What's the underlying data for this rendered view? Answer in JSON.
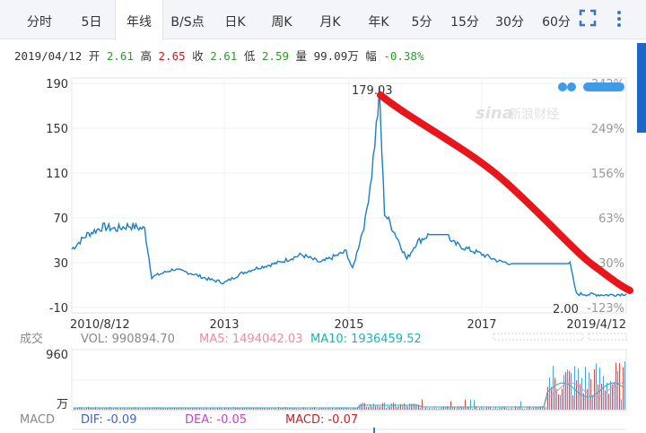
{
  "tabs": [
    "分时",
    "5日",
    "年线",
    "B/S点",
    "日K",
    "周K",
    "月K",
    "年K",
    "5分",
    "15分",
    "30分",
    "60分"
  ],
  "active_tab": "年线",
  "quote": {
    "date": "2019/04/12",
    "open_label": "开",
    "open": "2.61",
    "high_label": "高",
    "high": "2.65",
    "close_label": "收",
    "close": "2.61",
    "low_label": "低",
    "low": "2.59",
    "vol_label": "量",
    "volume": "99.09万",
    "chg_label": "幅",
    "change": "-0.38%"
  },
  "watermark": "新浪财经",
  "legend": {
    "vol_prefix": "成交",
    "vol": "VOL: 990894.70",
    "ma5": "MA5: 1494042.03",
    "ma10": "MA10: 1936459.52"
  },
  "macd_legend": {
    "label": "MACD",
    "dif": "DIF: -0.09",
    "dea": "DEA: -0.05",
    "macd": "MACD: -0.07"
  },
  "colors": {
    "price_line": "#1a7fc9",
    "annotation_red": "#e8151b",
    "ma5": "#f08aa6",
    "ma10": "#19b6b6",
    "vol_bar_red": "#e04a3a",
    "vol_bar_blue": "#4aa3d8",
    "dif": "#3f5fd8",
    "dea": "#c146c1",
    "macd": "#cc2222"
  },
  "chart_data": [
    {
      "type": "line",
      "x_tick_labels": [
        "2010/8/12",
        "2013",
        "2015",
        "2017",
        "2019/4/12"
      ],
      "y_tick_labels": [
        "190",
        "150",
        "110",
        "70",
        "30",
        "-10"
      ],
      "y_ticks": [
        190,
        150,
        110,
        70,
        30,
        -10
      ],
      "ylim": [
        -15,
        195
      ],
      "right_tick_labels": [
        "342%",
        "249%",
        "156%",
        "63%",
        "-30%",
        "-123%"
      ],
      "annotations": [
        "179.03",
        "2.00"
      ],
      "x_range": [
        2010.61,
        2019.28
      ],
      "x": [
        2010.61,
        2010.85,
        2011.1,
        2011.3,
        2011.5,
        2011.75,
        2011.86,
        2012.2,
        2012.5,
        2012.75,
        2013.0,
        2013.25,
        2013.5,
        2013.85,
        2014.2,
        2014.5,
        2014.9,
        2015.0,
        2015.2,
        2015.3,
        2015.42,
        2015.5,
        2015.7,
        2015.85,
        2016.0,
        2016.2,
        2016.5,
        2016.55,
        2016.8,
        2017.0,
        2017.3,
        2017.5,
        2018.0,
        2018.2,
        2018.4,
        2018.5,
        2019.0,
        2019.28
      ],
      "y": [
        42,
        55,
        62,
        60,
        63,
        60,
        17,
        24,
        20,
        15,
        12,
        20,
        25,
        30,
        37,
        30,
        40,
        24,
        68,
        110,
        179,
        75,
        52,
        33,
        48,
        55,
        55,
        48,
        42,
        38,
        31,
        29,
        29,
        29,
        29,
        2,
        1,
        2
      ]
    },
    {
      "type": "bar",
      "title": "成交",
      "y_tick_labels": [
        "960",
        "万"
      ],
      "ylim": [
        0,
        960
      ]
    }
  ]
}
